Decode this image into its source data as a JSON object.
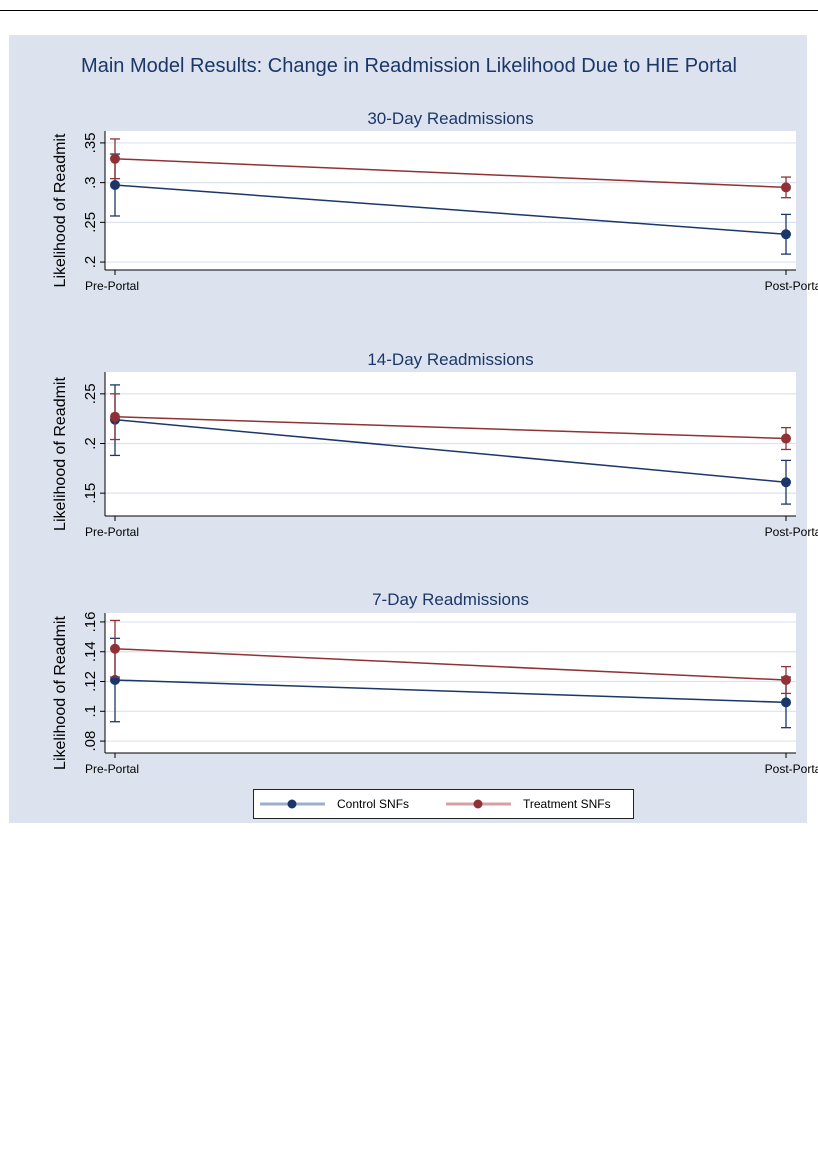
{
  "page_title": "Main Model Results: Change in Readmission Likelihood Due to HIE Portal",
  "colors": {
    "control": "#1b3769",
    "treatment": "#903235",
    "control_light": "#9bb0cf",
    "treatment_light": "#d9a0a3",
    "grid": "#dce3ef"
  },
  "legend": [
    {
      "name": "Control SNFs",
      "color": "#1b3769"
    },
    {
      "name": "Treatment SNFs",
      "color": "#903235"
    }
  ],
  "chart_data": [
    {
      "type": "line",
      "title": "30-Day Readmissions",
      "xlabel": "",
      "ylabel": "Likelihood of Readmit",
      "categories": [
        "Pre-Portal",
        "Post-Portal"
      ],
      "yticks": [
        0.2,
        0.25,
        0.3,
        0.35
      ],
      "ytick_labels": [
        ".2",
        ".25",
        ".3",
        ".35"
      ],
      "ylim": [
        0.19,
        0.365
      ],
      "grid": true,
      "series": [
        {
          "name": "Control SNFs",
          "values": [
            0.297,
            0.235
          ],
          "ci_low": [
            0.258,
            0.21
          ],
          "ci_high": [
            0.336,
            0.26
          ]
        },
        {
          "name": "Treatment SNFs",
          "values": [
            0.33,
            0.294
          ],
          "ci_low": [
            0.305,
            0.281
          ],
          "ci_high": [
            0.355,
            0.307
          ]
        }
      ]
    },
    {
      "type": "line",
      "title": "14-Day Readmissions",
      "xlabel": "",
      "ylabel": "Likelihood of Readmit",
      "categories": [
        "Pre-Portal",
        "Post-Portal"
      ],
      "yticks": [
        0.15,
        0.2,
        0.25
      ],
      "ytick_labels": [
        ".15",
        ".2",
        ".25"
      ],
      "ylim": [
        0.127,
        0.272
      ],
      "grid": true,
      "series": [
        {
          "name": "Control SNFs",
          "values": [
            0.224,
            0.161
          ],
          "ci_low": [
            0.188,
            0.139
          ],
          "ci_high": [
            0.259,
            0.183
          ]
        },
        {
          "name": "Treatment SNFs",
          "values": [
            0.227,
            0.205
          ],
          "ci_low": [
            0.204,
            0.194
          ],
          "ci_high": [
            0.25,
            0.216
          ]
        }
      ]
    },
    {
      "type": "line",
      "title": "7-Day Readmissions",
      "xlabel": "",
      "ylabel": "Likelihood of Readmit",
      "categories": [
        "Pre-Portal",
        "Post-Portal"
      ],
      "yticks": [
        0.08,
        0.1,
        0.12,
        0.14,
        0.16
      ],
      "ytick_labels": [
        ".08",
        ".1",
        ".12",
        ".14",
        ".16"
      ],
      "ylim": [
        0.072,
        0.166
      ],
      "grid": true,
      "series": [
        {
          "name": "Control SNFs",
          "values": [
            0.121,
            0.106
          ],
          "ci_low": [
            0.093,
            0.089
          ],
          "ci_high": [
            0.149,
            0.123
          ]
        },
        {
          "name": "Treatment SNFs",
          "values": [
            0.142,
            0.121
          ],
          "ci_low": [
            0.123,
            0.112
          ],
          "ci_high": [
            0.161,
            0.13
          ]
        }
      ]
    }
  ]
}
